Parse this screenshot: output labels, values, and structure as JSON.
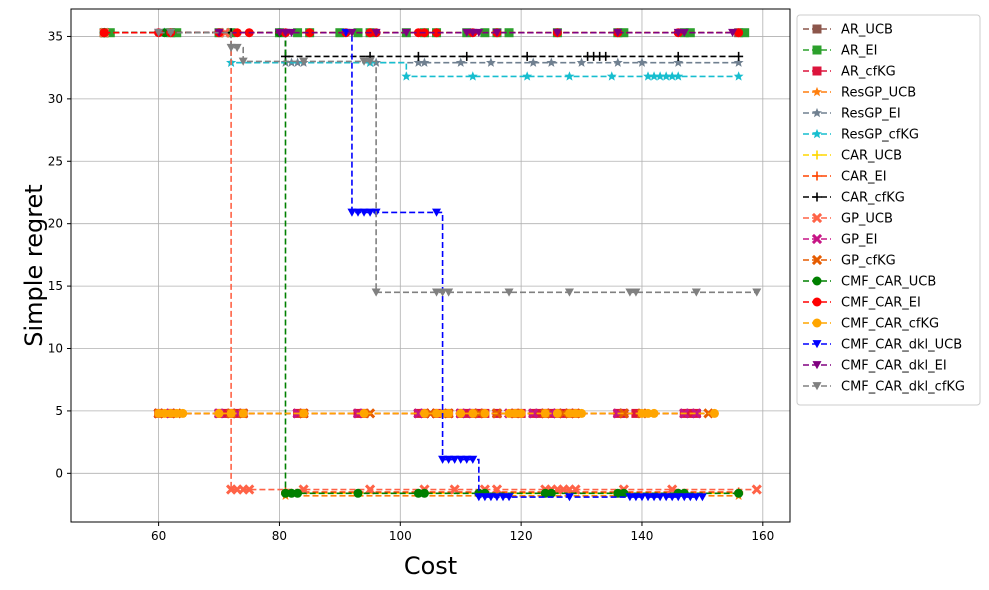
{
  "chart_data": {
    "type": "line",
    "title": "",
    "xlabel": "Cost",
    "ylabel": "Simple regret",
    "xlim": [
      45.5,
      164.5
    ],
    "ylim": [
      -3.9,
      37.2
    ],
    "xticks": [
      "60",
      "80",
      "100",
      "120",
      "140",
      "160"
    ],
    "yticks": [
      "0",
      "5",
      "10",
      "15",
      "20",
      "25",
      "30",
      "35"
    ],
    "grid": true,
    "legend_position": "outside-right",
    "series": [
      {
        "name": "AR_UCB",
        "color": "#8c564b",
        "marker": "square",
        "x": [
          51,
          156
        ],
        "y": [
          35.3,
          35.3
        ]
      },
      {
        "name": "AR_EI",
        "color": "#2ca02c",
        "marker": "square",
        "x": [
          51,
          52,
          62,
          63,
          70,
          72,
          80,
          83,
          85,
          90,
          93,
          95,
          101,
          104,
          106,
          111,
          114,
          116,
          118,
          126,
          136,
          137,
          147,
          148,
          157
        ],
        "y": [
          35.3,
          35.3,
          35.3,
          35.3,
          35.3,
          35.3,
          35.3,
          35.3,
          35.3,
          35.3,
          35.3,
          35.3,
          35.3,
          35.3,
          35.3,
          35.3,
          35.3,
          35.3,
          35.3,
          35.3,
          35.3,
          35.3,
          35.3,
          35.3,
          35.3
        ]
      },
      {
        "name": "AR_cfKG",
        "color": "#dc143c",
        "marker": "square",
        "x": [
          60,
          62,
          70,
          71,
          72,
          73,
          74,
          83,
          84,
          93,
          94,
          103,
          104,
          106,
          108,
          110,
          111,
          112,
          113,
          114,
          116,
          119,
          120,
          122,
          123,
          124,
          125,
          126,
          127,
          128,
          129,
          136,
          137,
          139,
          147,
          148,
          149
        ],
        "y": [
          4.8,
          4.8,
          4.8,
          4.8,
          4.8,
          4.8,
          4.8,
          4.8,
          4.8,
          4.8,
          4.8,
          4.8,
          4.8,
          4.8,
          4.8,
          4.8,
          4.8,
          4.8,
          4.8,
          4.8,
          4.8,
          4.8,
          4.8,
          4.8,
          4.8,
          4.8,
          4.8,
          4.8,
          4.8,
          4.8,
          4.8,
          4.8,
          4.8,
          4.8,
          4.8,
          4.8,
          4.8
        ]
      },
      {
        "name": "ResGP_UCB",
        "color": "#ff7f0e",
        "marker": "star",
        "x": [
          81,
          156
        ],
        "y": [
          -1.8,
          -1.8
        ]
      },
      {
        "name": "ResGP_EI",
        "color": "#708090",
        "marker": "star",
        "x": [
          51,
          61,
          72,
          81,
          82,
          83,
          84,
          95,
          96,
          103,
          104,
          110,
          115,
          122,
          125,
          130,
          136,
          140,
          146,
          156
        ],
        "y": [
          35.3,
          35.3,
          32.9,
          32.9,
          32.9,
          32.9,
          32.9,
          32.9,
          32.9,
          32.9,
          32.9,
          32.9,
          32.9,
          32.9,
          32.9,
          32.9,
          32.9,
          32.9,
          32.9,
          32.9
        ]
      },
      {
        "name": "ResGP_cfKG",
        "color": "#17becf",
        "marker": "star",
        "x": [
          51,
          61,
          72,
          95,
          101,
          112,
          121,
          128,
          135,
          141,
          142,
          143,
          144,
          145,
          146,
          156
        ],
        "y": [
          35.3,
          35.3,
          32.9,
          32.9,
          31.8,
          31.8,
          31.8,
          31.8,
          31.8,
          31.8,
          31.8,
          31.8,
          31.8,
          31.8,
          31.8,
          31.8
        ]
      },
      {
        "name": "CAR_UCB",
        "color": "#ffd700",
        "marker": "plus",
        "x": [
          81,
          156
        ],
        "y": [
          -1.6,
          -1.6
        ]
      },
      {
        "name": "CAR_EI",
        "color": "#ff4500",
        "marker": "plus",
        "x": [
          81,
          156
        ],
        "y": [
          -1.5,
          -1.5
        ]
      },
      {
        "name": "CAR_cfKG",
        "color": "#000000",
        "marker": "plus",
        "x": [
          51,
          72,
          81,
          95,
          103,
          111,
          121,
          131,
          132,
          133,
          134,
          146,
          156
        ],
        "y": [
          35.3,
          35.3,
          33.4,
          33.4,
          33.4,
          33.4,
          33.4,
          33.4,
          33.4,
          33.4,
          33.4,
          33.4,
          33.4
        ]
      },
      {
        "name": "GP_UCB",
        "color": "#ff6347",
        "marker": "x",
        "x": [
          51,
          71,
          72,
          73,
          74,
          75,
          84,
          95,
          104,
          109,
          114,
          116,
          124,
          125,
          126,
          127,
          128,
          129,
          137,
          145,
          159
        ],
        "y": [
          35.3,
          35.3,
          -1.3,
          -1.3,
          -1.3,
          -1.3,
          -1.3,
          -1.3,
          -1.3,
          -1.3,
          -1.3,
          -1.3,
          -1.3,
          -1.3,
          -1.3,
          -1.3,
          -1.3,
          -1.3,
          -1.3,
          -1.3,
          -1.3
        ]
      },
      {
        "name": "GP_EI",
        "color": "#c71585",
        "marker": "x",
        "x": [
          60,
          62,
          70,
          72,
          73,
          83,
          93,
          103,
          105,
          110,
          112,
          113,
          116,
          118,
          122,
          124,
          125,
          126,
          128,
          136,
          137,
          147,
          149
        ],
        "y": [
          4.8,
          4.8,
          4.8,
          4.8,
          4.8,
          4.8,
          4.8,
          4.8,
          4.8,
          4.8,
          4.8,
          4.8,
          4.8,
          4.8,
          4.8,
          4.8,
          4.8,
          4.8,
          4.8,
          4.8,
          4.8,
          4.8,
          4.8
        ]
      },
      {
        "name": "GP_cfKG",
        "color": "#e65c00",
        "marker": "x",
        "x": [
          60,
          63,
          72,
          74,
          84,
          95,
          105,
          108,
          113,
          116,
          119,
          124,
          127,
          129,
          137,
          140,
          151
        ],
        "y": [
          4.8,
          4.8,
          4.8,
          4.8,
          4.8,
          4.8,
          4.8,
          4.8,
          4.8,
          4.8,
          4.8,
          4.8,
          4.8,
          4.8,
          4.8,
          4.8,
          4.8
        ]
      },
      {
        "name": "CMF_CAR_UCB",
        "color": "#008000",
        "marker": "circle",
        "x": [
          51,
          61,
          80,
          81,
          82,
          83,
          93,
          103,
          104,
          113,
          114,
          124,
          125,
          136,
          137,
          146,
          147,
          156
        ],
        "y": [
          35.3,
          35.3,
          35.3,
          -1.6,
          -1.6,
          -1.6,
          -1.6,
          -1.6,
          -1.6,
          -1.6,
          -1.6,
          -1.6,
          -1.6,
          -1.6,
          -1.6,
          -1.6,
          -1.6,
          -1.6
        ]
      },
      {
        "name": "CMF_CAR_EI",
        "color": "#ff0000",
        "marker": "circle",
        "x": [
          51,
          60,
          62,
          70,
          73,
          75,
          81,
          85,
          91,
          95,
          96,
          103,
          104,
          106,
          112,
          116,
          126,
          136,
          146,
          156
        ],
        "y": [
          35.3,
          35.3,
          35.3,
          35.3,
          35.3,
          35.3,
          35.3,
          35.3,
          35.3,
          35.3,
          35.3,
          35.3,
          35.3,
          35.3,
          35.3,
          35.3,
          35.3,
          35.3,
          35.3,
          35.3
        ]
      },
      {
        "name": "CMF_CAR_cfKG",
        "color": "#ffa500",
        "marker": "circle",
        "x": [
          60,
          61,
          62,
          63,
          64,
          70,
          72,
          74,
          84,
          94,
          104,
          106,
          107,
          108,
          110,
          112,
          114,
          118,
          119,
          120,
          124,
          126,
          128,
          129,
          130,
          140,
          141,
          142,
          152
        ],
        "y": [
          4.8,
          4.8,
          4.8,
          4.8,
          4.8,
          4.8,
          4.8,
          4.8,
          4.8,
          4.8,
          4.8,
          4.8,
          4.8,
          4.8,
          4.8,
          4.8,
          4.8,
          4.8,
          4.8,
          4.8,
          4.8,
          4.8,
          4.8,
          4.8,
          4.8,
          4.8,
          4.8,
          4.8,
          4.8
        ]
      },
      {
        "name": "CMF_CAR_dkl_UCB",
        "color": "#0000ff",
        "marker": "triangle-down",
        "x": [
          91,
          92,
          93,
          94,
          95,
          96,
          106,
          107,
          108,
          109,
          110,
          111,
          112,
          113,
          114,
          115,
          116,
          117,
          118,
          128,
          138,
          139,
          140,
          141,
          142,
          143,
          144,
          145,
          146,
          147,
          148,
          149,
          150
        ],
        "y": [
          35.3,
          20.9,
          20.9,
          20.9,
          20.9,
          20.9,
          20.9,
          1.1,
          1.1,
          1.1,
          1.1,
          1.1,
          1.1,
          -1.9,
          -1.9,
          -1.9,
          -1.9,
          -1.9,
          -1.9,
          -1.9,
          -1.9,
          -1.9,
          -1.9,
          -1.9,
          -1.9,
          -1.9,
          -1.9,
          -1.9,
          -1.9,
          -1.9,
          -1.9,
          -1.9,
          -1.9
        ]
      },
      {
        "name": "CMF_CAR_dkl_EI",
        "color": "#800080",
        "marker": "triangle-down",
        "x": [
          60,
          62,
          70,
          80,
          81,
          82,
          92,
          96,
          101,
          111,
          112,
          113,
          116,
          126,
          136,
          146,
          147,
          155
        ],
        "y": [
          35.3,
          35.3,
          35.3,
          35.3,
          35.3,
          35.3,
          35.3,
          35.3,
          35.3,
          35.3,
          35.3,
          35.3,
          35.3,
          35.3,
          35.3,
          35.3,
          35.3,
          35.3
        ]
      },
      {
        "name": "CMF_CAR_dkl_cfKG",
        "color": "#808080",
        "marker": "triangle-down",
        "x": [
          60,
          62,
          72,
          73,
          74,
          84,
          94,
          95,
          96,
          106,
          107,
          108,
          118,
          128,
          138,
          139,
          149,
          159
        ],
        "y": [
          35.3,
          35.3,
          34.1,
          34.1,
          33.0,
          33.0,
          33.0,
          33.0,
          14.5,
          14.5,
          14.5,
          14.5,
          14.5,
          14.5,
          14.5,
          14.5,
          14.5,
          14.5
        ]
      }
    ]
  }
}
